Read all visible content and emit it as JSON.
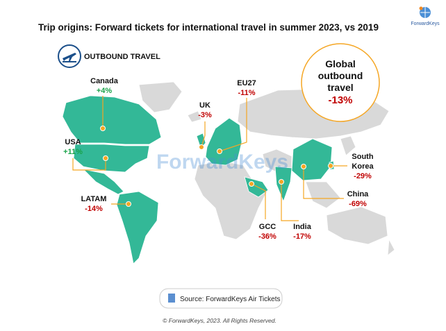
{
  "header": {
    "title": "Trip origins: Forward tickets for international travel in summer 2023, vs 2019",
    "logo": "ForwardKeys"
  },
  "badge": {
    "label": "OUTBOUND TRAVEL"
  },
  "global": {
    "lines": [
      "Global",
      "outbound",
      "travel"
    ],
    "change": "-13%",
    "color": "#c00000"
  },
  "regions": [
    {
      "name": [
        "Canada"
      ],
      "change": "+4%",
      "color": "#1aa34a"
    },
    {
      "name": [
        "USA"
      ],
      "change": "+11%",
      "color": "#1aa34a"
    },
    {
      "name": [
        "LATAM"
      ],
      "change": "-14%",
      "color": "#c00000"
    },
    {
      "name": [
        "UK"
      ],
      "change": "-3%",
      "color": "#c00000"
    },
    {
      "name": [
        "EU27"
      ],
      "change": "-11%",
      "color": "#c00000"
    },
    {
      "name": [
        "GCC"
      ],
      "change": "-36%",
      "color": "#c00000"
    },
    {
      "name": [
        "India"
      ],
      "change": "-17%",
      "color": "#c00000"
    },
    {
      "name": [
        "China"
      ],
      "change": "-69%",
      "color": "#c00000"
    },
    {
      "name": [
        "South",
        "Korea"
      ],
      "change": "-29%",
      "color": "#c00000"
    }
  ],
  "watermark": "ForwardKeys",
  "source": "Source: ForwardKeys Air Tickets",
  "footer": "© ForwardKeys, 2023. All Rights Reserved."
}
